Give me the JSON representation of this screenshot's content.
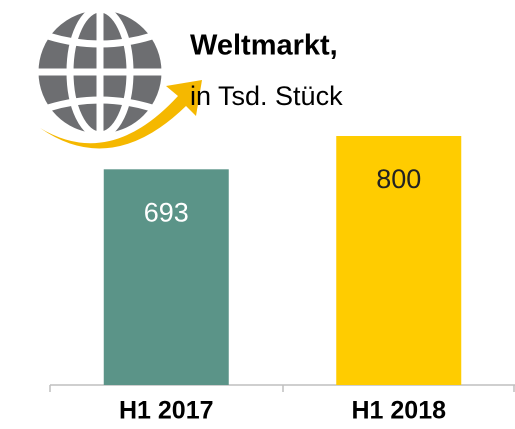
{
  "chart_data": {
    "type": "bar",
    "title": "Weltmarkt,",
    "subtitle": "in Tsd. Stück",
    "categories": [
      "H1 2017",
      "H1 2018"
    ],
    "values": [
      693,
      800
    ],
    "colors": [
      "#5b9488",
      "#ffcc00"
    ]
  }
}
